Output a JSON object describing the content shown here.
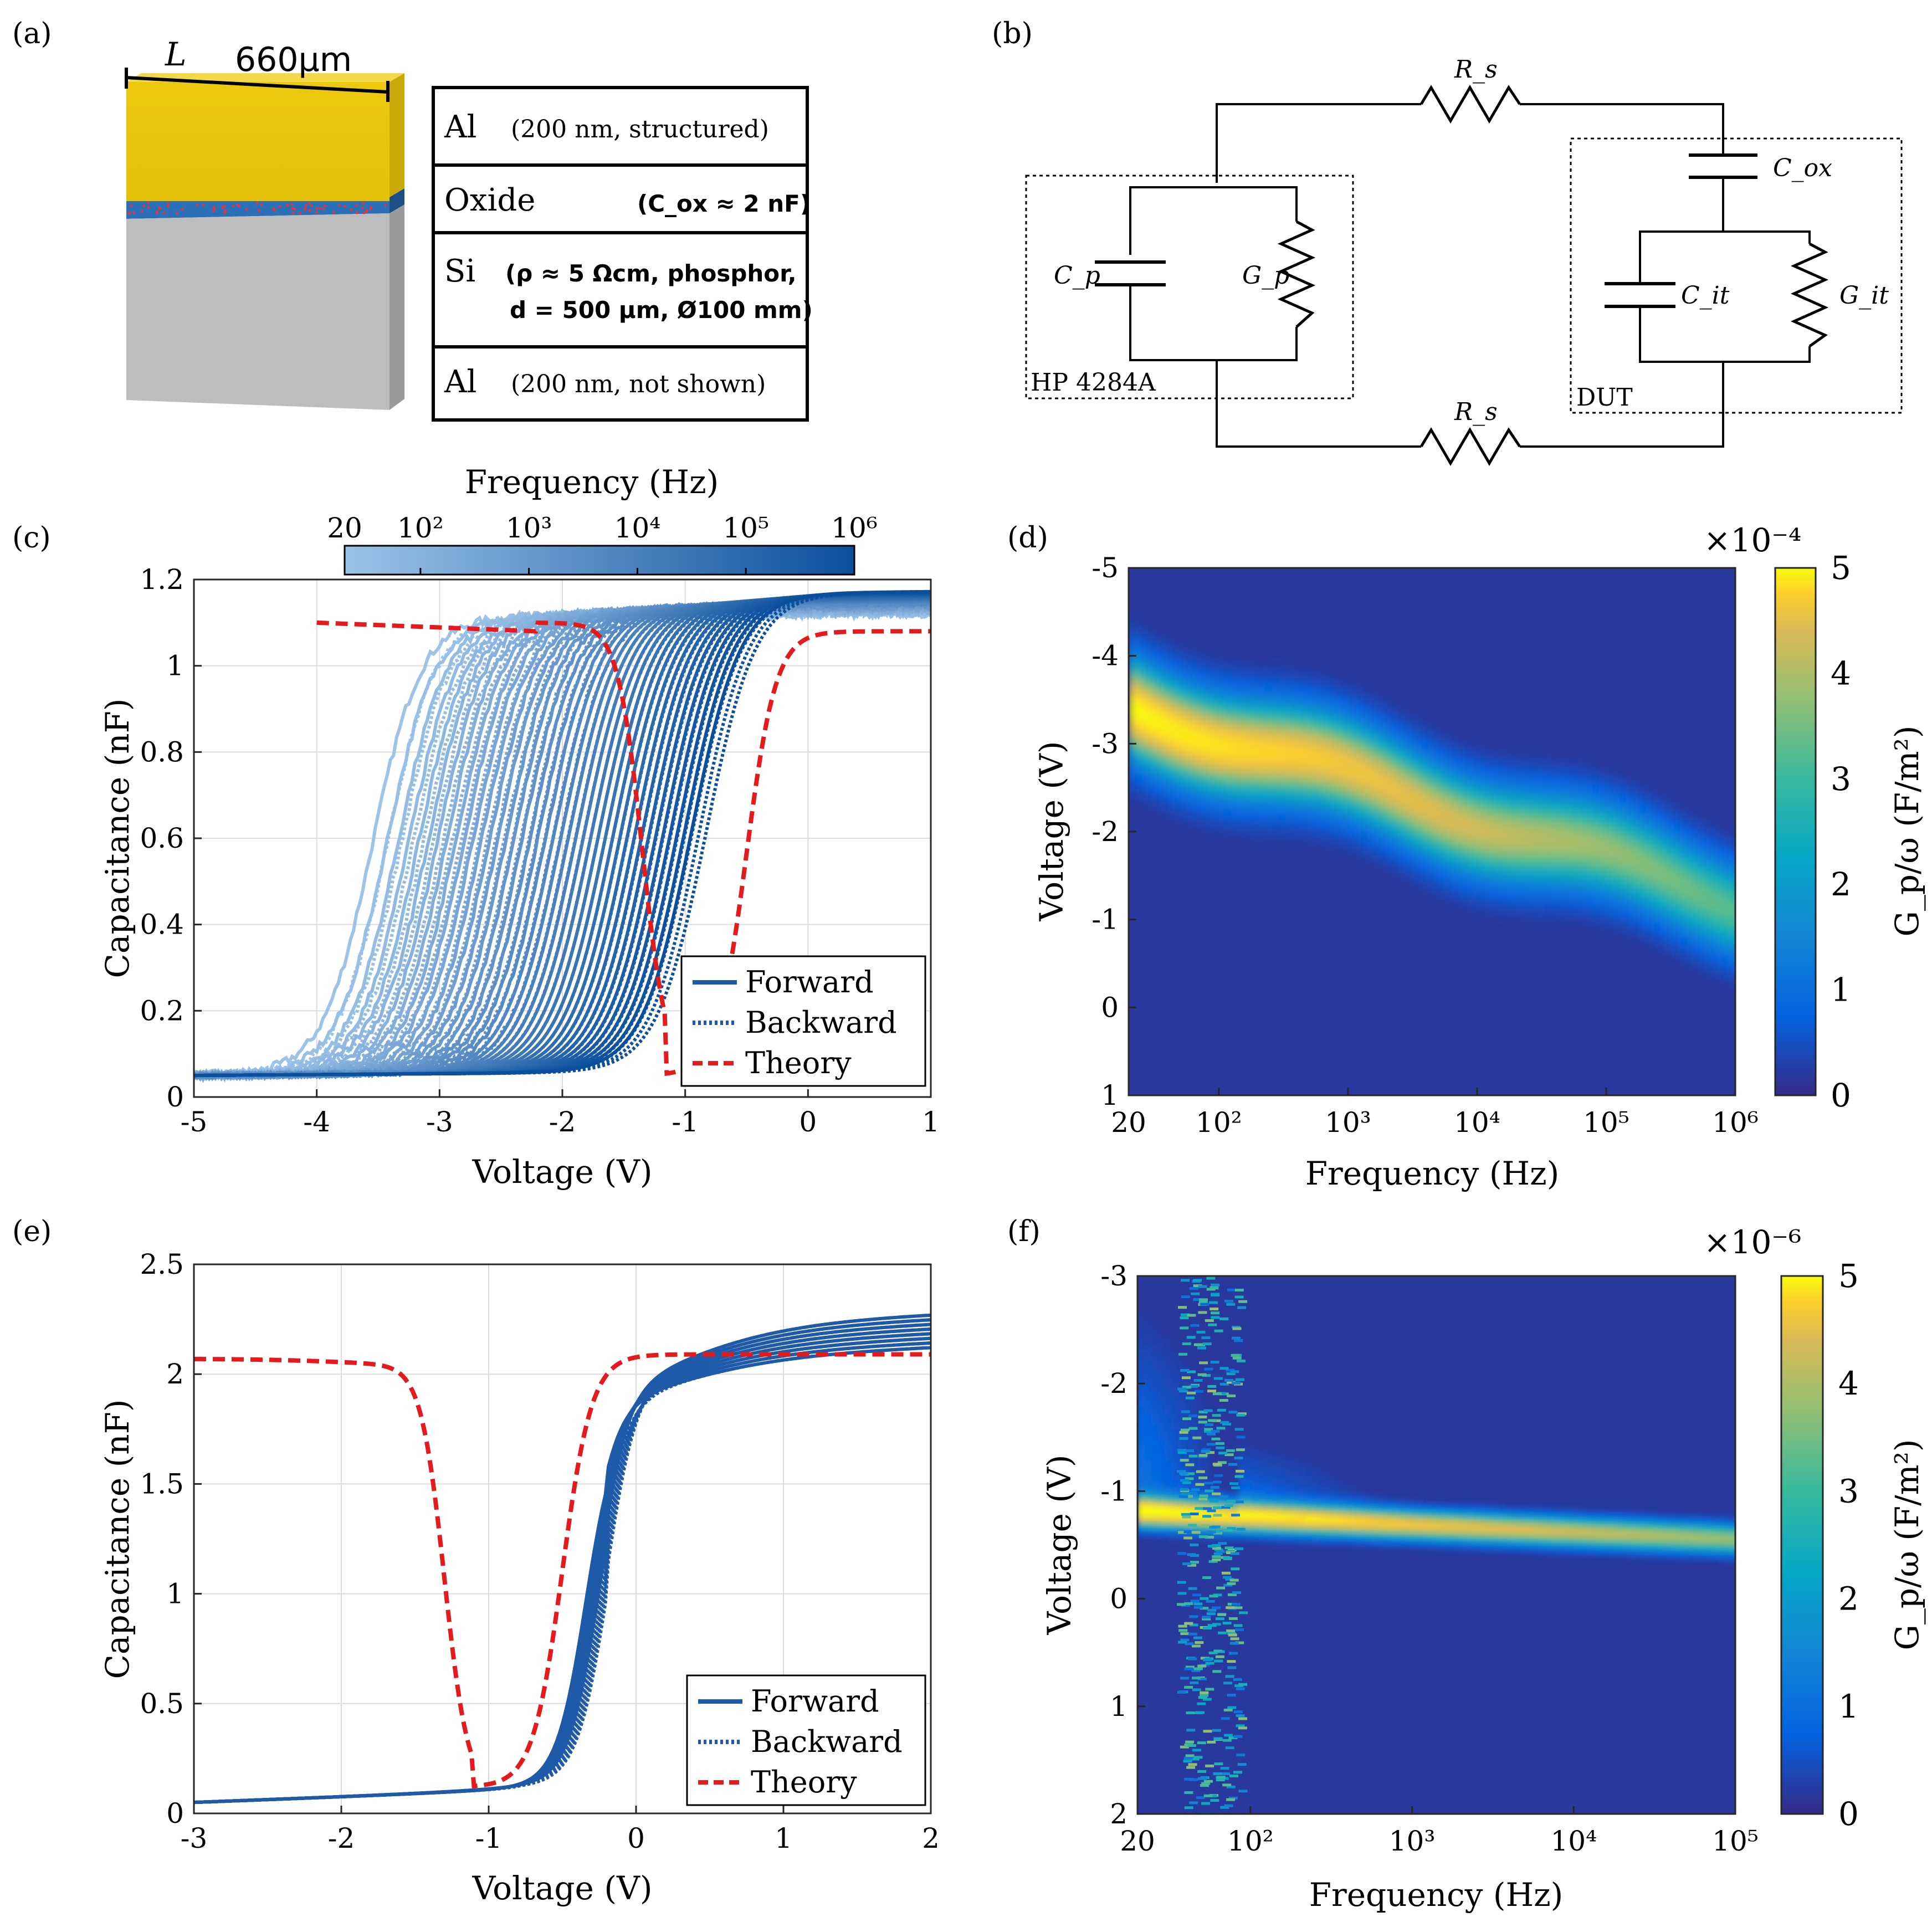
{
  "panels": [
    "(a)",
    "(b)",
    "(c)",
    "(d)",
    "(e)",
    "(f)"
  ],
  "device": {
    "length_symbol": "L",
    "length_value": "660μm",
    "layers": [
      {
        "material": "Al",
        "detail": "(200 nm, structured)"
      },
      {
        "material": "Oxide",
        "detail": "(C_ox ≈ 2 nF)"
      },
      {
        "material": "Si",
        "detail": "(ρ ≈ 5 Ωcm, phosphor,",
        "detail2": "d = 500 μm, Ø100 mm)"
      },
      {
        "material": "Al",
        "detail": "(200 nm, not shown)"
      }
    ],
    "colors": {
      "al": "#e6c40c",
      "oxide": "#2b6fb6",
      "si": "#bdbdbd"
    }
  },
  "circuit": {
    "rs_top": "R_s",
    "rs_bottom": "R_s",
    "cp": "C_p",
    "gp": "G_p",
    "cox": "C_ox",
    "cit": "C_it",
    "git": "G_it",
    "meter_label": "HP 4284A",
    "dut_label": "DUT"
  },
  "chart_data": [
    {
      "id": "c",
      "type": "line",
      "xlabel": "Voltage (V)",
      "ylabel": "Capacitance (nF)",
      "xlim": [
        -5,
        1
      ],
      "ylim": [
        0,
        1.2
      ],
      "xticks": [
        "-5",
        "-4",
        "-3",
        "-2",
        "-1",
        "0",
        "1"
      ],
      "yticks": [
        "0",
        "0.2",
        "0.4",
        "0.6",
        "0.8",
        "1",
        "1.2"
      ],
      "grid": true,
      "legend": [
        "Forward",
        "Backward",
        "Theory"
      ],
      "legend_position": "bottom-right",
      "colorbar_title": "Frequency (Hz)",
      "colorbar_ticks": [
        "20",
        "10²",
        "10³",
        "10⁴",
        "10⁵",
        "10⁶"
      ],
      "curve_colors": {
        "low_freq": "#9cc3e8",
        "high_freq": "#0b4f9c",
        "theory": "#e41a1c"
      },
      "sweeps": {
        "count": 40,
        "v_mid_low_freq": -3.55,
        "v_mid_high_freq": -0.95,
        "c_min": 0.05,
        "c_max": 1.16
      },
      "theory": {
        "c_max": 1.1,
        "c_min": 0.05,
        "v_deep_depletion": -1.35,
        "v_min": -1.15,
        "v_rise": -0.5,
        "c_end": 1.08
      }
    },
    {
      "id": "d",
      "type": "heatmap",
      "xlabel": "Frequency (Hz)",
      "ylabel": "Voltage (V)",
      "xscale": "log",
      "xlim": [
        20,
        1000000
      ],
      "ylim": [
        1,
        -5
      ],
      "xticks": [
        "20",
        "10²",
        "10³",
        "10⁴",
        "10⁵",
        "10⁶"
      ],
      "yticks": [
        "-5",
        "-4",
        "-3",
        "-2",
        "-1",
        "0",
        "1"
      ],
      "colorbar_label": "G_p/ω (F/m²)",
      "colorbar_exponent": "×10⁻⁴",
      "colorbar_ticks": [
        "0",
        "1",
        "2",
        "3",
        "4",
        "5"
      ],
      "clim": [
        0,
        5
      ],
      "ridge": {
        "v_at_20Hz": -3.4,
        "v_at_1MHz": -1.2,
        "peak_at_20Hz": 4.4,
        "peak_at_1MHz": 2.4
      }
    },
    {
      "id": "e",
      "type": "line",
      "xlabel": "Voltage (V)",
      "ylabel": "Capacitance (nF)",
      "xlim": [
        -3,
        2
      ],
      "ylim": [
        0,
        2.5
      ],
      "xticks": [
        "-3",
        "-2",
        "-1",
        "0",
        "1",
        "2"
      ],
      "yticks": [
        "0",
        "0.5",
        "1",
        "1.5",
        "2",
        "2.5"
      ],
      "grid": true,
      "legend": [
        "Forward",
        "Backward",
        "Theory"
      ],
      "legend_position": "bottom-right",
      "curve_colors": {
        "forward": "#1f5aa8",
        "theory": "#e41a1c"
      },
      "sweeps": {
        "count": 8,
        "v_mid": -0.3,
        "c_min": 0.05,
        "c_max_range": [
          2.15,
          2.3
        ]
      },
      "theory": {
        "c_max": 2.07,
        "c_min": 0.12,
        "v_deep_depletion": -1.3,
        "v_min": -1.1,
        "v_rise": -0.5,
        "c_end": 2.09
      }
    },
    {
      "id": "f",
      "type": "heatmap",
      "xlabel": "Frequency (Hz)",
      "ylabel": "Voltage (V)",
      "xscale": "log",
      "xlim": [
        20,
        100000
      ],
      "ylim": [
        2,
        -3
      ],
      "xticks": [
        "20",
        "10²",
        "10³",
        "10⁴",
        "10⁵"
      ],
      "yticks": [
        "-3",
        "-2",
        "-1",
        "0",
        "1",
        "2"
      ],
      "colorbar_label": "G_p/ω (F/m²)",
      "colorbar_exponent": "×10⁻⁶",
      "colorbar_ticks": [
        "0",
        "1",
        "2",
        "3",
        "4",
        "5"
      ],
      "clim": [
        0,
        5
      ],
      "ridge": {
        "v_at_20Hz": -0.8,
        "v_at_100kHz": -0.55,
        "peak_at_20Hz": 5,
        "peak_at_100kHz": 3.2
      }
    }
  ]
}
